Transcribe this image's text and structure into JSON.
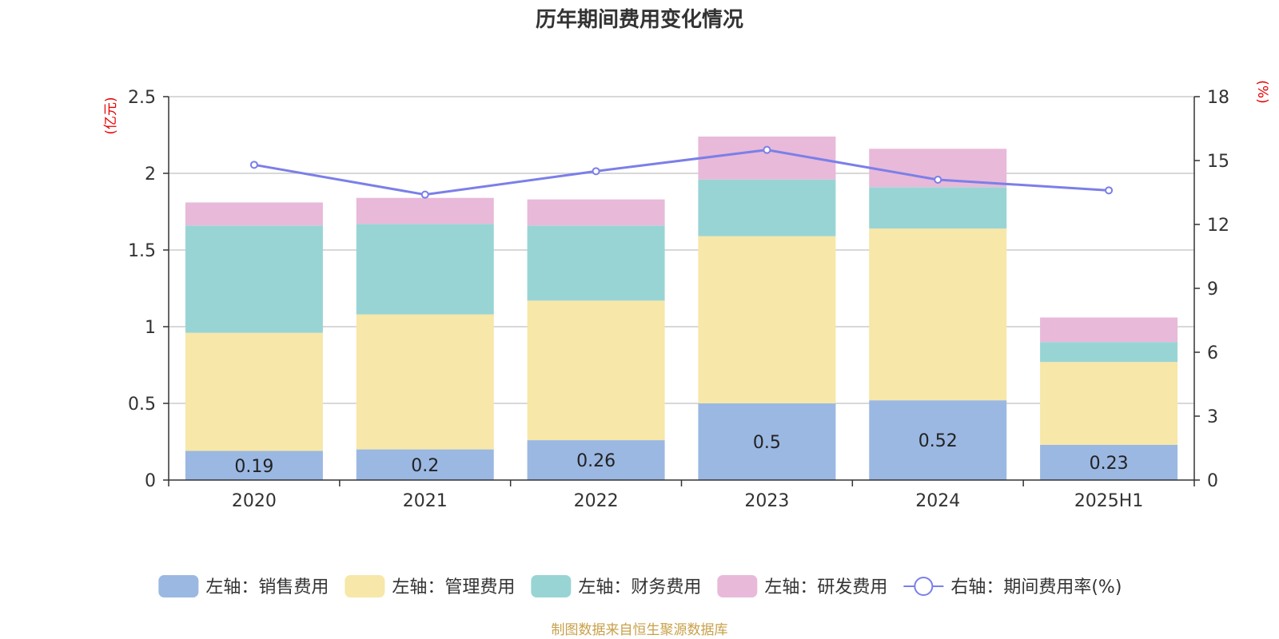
{
  "chart_data": {
    "type": "bar",
    "title": "历年期间费用变化情况",
    "categories": [
      "2020",
      "2021",
      "2022",
      "2023",
      "2024",
      "2025H1"
    ],
    "left_axis": {
      "unit": "(亿元)",
      "ylim": [
        0,
        2.5
      ],
      "ticks": [
        "0",
        "0.5",
        "1",
        "1.5",
        "2",
        "2.5"
      ]
    },
    "right_axis": {
      "unit": "(%)",
      "ylim": [
        0,
        18
      ],
      "ticks": [
        "0",
        "3",
        "6",
        "9",
        "12",
        "15",
        "18"
      ]
    },
    "series": [
      {
        "name": "左轴：销售费用",
        "type": "bar",
        "color": "#9bb8e2",
        "values": [
          0.19,
          0.2,
          0.26,
          0.5,
          0.52,
          0.23
        ],
        "labels": [
          "0.19",
          "0.2",
          "0.26",
          "0.5",
          "0.52",
          "0.23"
        ]
      },
      {
        "name": "左轴：管理费用",
        "type": "bar",
        "color": "#f7e7a8",
        "values": [
          0.77,
          0.88,
          0.91,
          1.09,
          1.12,
          0.54
        ]
      },
      {
        "name": "左轴：财务费用",
        "type": "bar",
        "color": "#99d4d5",
        "values": [
          0.7,
          0.59,
          0.49,
          0.37,
          0.27,
          0.13
        ]
      },
      {
        "name": "左轴：研发费用",
        "type": "bar",
        "color": "#e8b9d9",
        "values": [
          0.15,
          0.17,
          0.17,
          0.28,
          0.25,
          0.16
        ]
      },
      {
        "name": "右轴：期间费用率(%)",
        "type": "line",
        "color": "#7b7fe8",
        "values": [
          14.8,
          13.4,
          14.5,
          15.5,
          14.1,
          13.6
        ]
      }
    ],
    "grid": true,
    "legend_position": "bottom"
  },
  "source_note": "制图数据来自恒生聚源数据库"
}
